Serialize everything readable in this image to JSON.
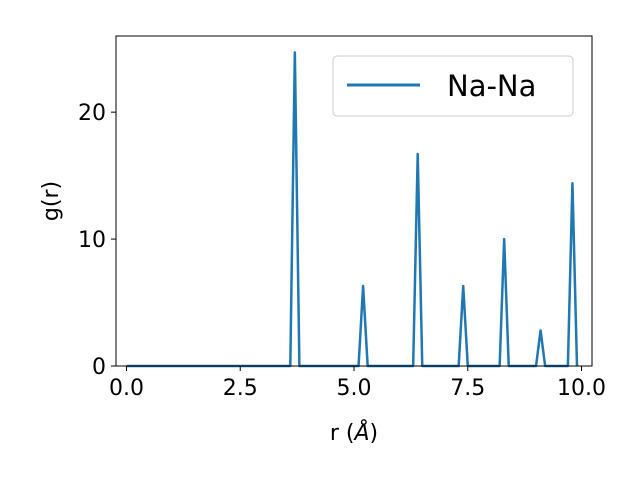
{
  "chart_data": {
    "type": "line",
    "xlabel": "r (",
    "xlabel_unit": "Å",
    "xlabel_close": ")",
    "ylabel": "g(r)",
    "xlim": [
      -0.23,
      10.23
    ],
    "ylim": [
      0,
      26
    ],
    "xticks": [
      {
        "value": 0.0,
        "label": "0.0"
      },
      {
        "value": 2.5,
        "label": "2.5"
      },
      {
        "value": 5.0,
        "label": "5.0"
      },
      {
        "value": 7.5,
        "label": "7.5"
      },
      {
        "value": 10.0,
        "label": "10.0"
      }
    ],
    "yticks": [
      {
        "value": 0,
        "label": "0"
      },
      {
        "value": 10,
        "label": "10"
      },
      {
        "value": 20,
        "label": "20"
      }
    ],
    "grid": false,
    "legend_position": "top-right",
    "series": [
      {
        "name": "Na-Na",
        "color": "#1f77b4",
        "x": [
          0.0,
          3.6,
          3.7,
          3.8,
          5.1,
          5.2,
          5.3,
          6.3,
          6.4,
          6.5,
          7.3,
          7.4,
          7.5,
          8.2,
          8.3,
          8.4,
          9.0,
          9.1,
          9.2,
          9.7,
          9.8,
          9.9
        ],
        "y": [
          0,
          0,
          24.7,
          0,
          0,
          6.3,
          0,
          0,
          16.7,
          0,
          0,
          6.3,
          0,
          0,
          10.0,
          0,
          0,
          2.8,
          0,
          0,
          14.4,
          0
        ]
      }
    ]
  }
}
